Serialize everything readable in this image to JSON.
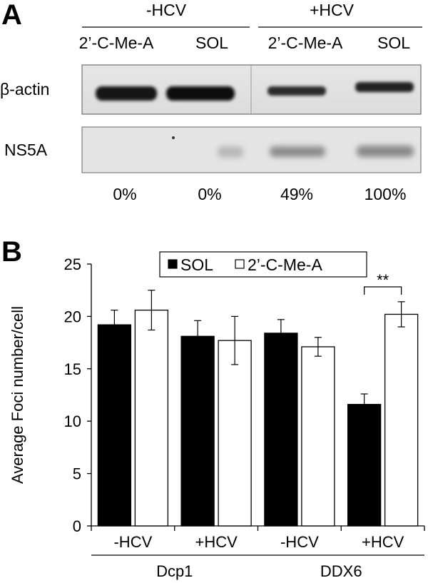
{
  "panel_a": {
    "letter": "A",
    "groups": [
      "-HCV",
      "+HCV"
    ],
    "lanes": [
      "2’-C-Me-A",
      "SOL",
      "2’-C-Me-A",
      "SOL"
    ],
    "blots": [
      "β-actin",
      "NS5A"
    ],
    "percentages": [
      "0%",
      "0%",
      "49%",
      "100%"
    ]
  },
  "chart_data": {
    "panel_letter": "B",
    "type": "bar",
    "ylabel": "Average Foci number/cell",
    "ylim": [
      0,
      25
    ],
    "yticks": [
      0,
      5,
      10,
      15,
      20,
      25
    ],
    "categories": [
      "-HCV",
      "+HCV",
      "-HCV",
      "+HCV"
    ],
    "category_groups": [
      {
        "label": "Dcp1",
        "categories": [
          0,
          1
        ]
      },
      {
        "label": "DDX6",
        "categories": [
          2,
          3
        ]
      }
    ],
    "series": [
      {
        "name": "SOL",
        "color": "#000000",
        "values": [
          19.2,
          18.1,
          18.4,
          11.6
        ],
        "errors": [
          1.4,
          1.5,
          1.3,
          1.0
        ]
      },
      {
        "name": "2’-C-Me-A",
        "color": "#ffffff",
        "values": [
          20.6,
          17.7,
          17.1,
          20.2
        ],
        "errors": [
          1.9,
          2.3,
          0.9,
          1.2
        ]
      }
    ],
    "annotations": [
      {
        "text": "**",
        "category": 3
      }
    ],
    "legend_position": "top"
  }
}
